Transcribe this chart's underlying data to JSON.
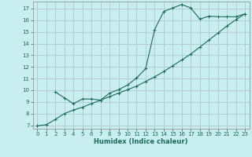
{
  "xlabel": "Humidex (Indice chaleur)",
  "background_color": "#c8eef0",
  "grid_color": "#b0c8cc",
  "line_color": "#1a6b5a",
  "xlim": [
    -0.5,
    23.5
  ],
  "ylim": [
    6.7,
    17.6
  ],
  "xticks": [
    0,
    1,
    2,
    3,
    4,
    5,
    6,
    7,
    8,
    9,
    10,
    11,
    12,
    13,
    14,
    15,
    16,
    17,
    18,
    19,
    20,
    21,
    22,
    23
  ],
  "yticks": [
    7,
    8,
    9,
    10,
    11,
    12,
    13,
    14,
    15,
    16,
    17
  ],
  "line1_x": [
    0,
    1,
    2,
    3,
    4,
    5,
    6,
    7,
    8,
    9,
    10,
    11,
    12,
    13,
    14,
    15,
    16,
    17,
    18,
    19,
    20,
    21,
    22,
    23
  ],
  "line1_y": [
    6.95,
    7.05,
    7.5,
    8.0,
    8.3,
    8.55,
    8.85,
    9.15,
    9.45,
    9.75,
    10.05,
    10.35,
    10.75,
    11.15,
    11.6,
    12.1,
    12.6,
    13.1,
    13.7,
    14.3,
    14.9,
    15.5,
    16.05,
    16.55
  ],
  "line2_x": [
    2,
    3,
    4,
    5,
    6,
    7,
    8,
    9,
    10,
    11,
    12,
    13,
    14,
    15,
    16,
    17,
    18,
    19,
    20,
    21,
    22,
    23
  ],
  "line2_y": [
    9.85,
    9.35,
    8.85,
    9.25,
    9.25,
    9.15,
    9.75,
    10.05,
    10.45,
    11.05,
    11.85,
    15.2,
    16.75,
    17.05,
    17.35,
    17.05,
    16.1,
    16.35,
    16.3,
    16.3,
    16.3,
    16.55
  ]
}
